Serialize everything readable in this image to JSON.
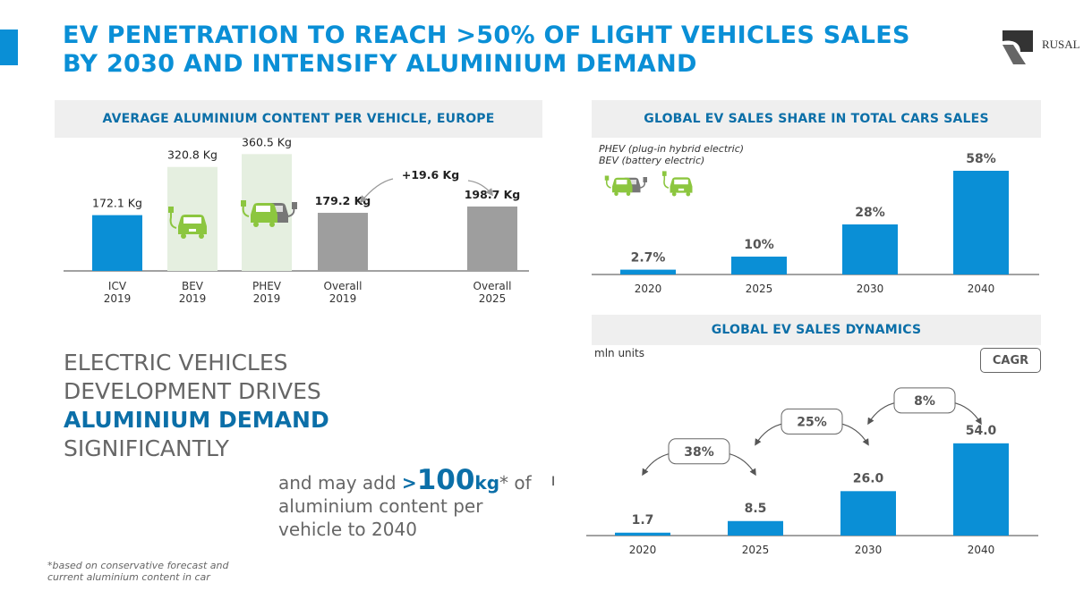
{
  "header": {
    "title_line1": "EV PENETRATION TO REACH >50% OF LIGHT VEHICLES SALES",
    "title_line2": "BY 2030 AND INTENSIFY ALUMINIUM DEMAND",
    "logo_text": "RUSAL"
  },
  "colors": {
    "blue": "#0a8fd6",
    "dark_blue": "#0b6fa8",
    "gray_bar": "#9e9e9e",
    "green_icon": "#8cc63f",
    "highlight_bg": "#e5efe0"
  },
  "statement": {
    "line1": "ELECTRIC VEHICLES",
    "line2": "DEVELOPMENT DRIVES",
    "line3": "ALUMINIUM DEMAND",
    "line4": "SIGNIFICANTLY"
  },
  "may_add": {
    "prefix": "and may add",
    "gt": ">",
    "number": "100",
    "unit": "kg",
    "suffix": "* of",
    "line2": "aluminium content per",
    "line3": "vehicle to 2040"
  },
  "footnote": {
    "line1": "*based on conservative forecast and",
    "line2": "current aluminium content in car"
  },
  "legend_text": {
    "phev": "PHEV (plug-in hybrid electric)",
    "bev": "BEV (battery electric)"
  },
  "units_text": "mln units",
  "cagr_label": "CAGR",
  "chart_data": [
    {
      "type": "bar",
      "title": "AVERAGE ALUMINIUM CONTENT PER VEHICLE, EUROPE",
      "categories": [
        "ICV\n2019",
        "BEV\n2019",
        "PHEV\n2019",
        "Overall\n2019",
        "Overall\n2025"
      ],
      "category_lines": [
        [
          "ICV",
          "2019"
        ],
        [
          "BEV",
          "2019"
        ],
        [
          "PHEV",
          "2019"
        ],
        [
          "Overall",
          "2019"
        ],
        [
          "Overall",
          "2025"
        ]
      ],
      "values": [
        172.1,
        320.8,
        360.5,
        179.2,
        198.7
      ],
      "value_labels": [
        "172.1 Kg",
        "320.8 Kg",
        "360.5 Kg",
        "179.2 Kg",
        "198.7 Kg"
      ],
      "bar_styles": [
        "blue",
        "icon",
        "icon",
        "gray",
        "gray"
      ],
      "bold_labels": [
        false,
        false,
        false,
        true,
        true
      ],
      "annotation": "+19.6 Kg",
      "ylim": [
        0,
        400
      ]
    },
    {
      "type": "bar",
      "title": "GLOBAL EV SALES SHARE IN TOTAL CARS SALES",
      "categories": [
        "2020",
        "2025",
        "2030",
        "2040"
      ],
      "values": [
        2.7,
        10,
        28,
        58
      ],
      "value_labels": [
        "2.7%",
        "10%",
        "28%",
        "58%"
      ],
      "ylim": [
        0,
        60
      ]
    },
    {
      "type": "bar",
      "title": "GLOBAL EV SALES DYNAMICS",
      "categories": [
        "2020",
        "2025",
        "2030",
        "2040"
      ],
      "values": [
        1.7,
        8.5,
        26.0,
        54.0
      ],
      "value_labels": [
        "1.7",
        "8.5",
        "26.0",
        "54.0"
      ],
      "cagr": [
        "38%",
        "25%",
        "8%"
      ],
      "ylim": [
        0,
        56
      ]
    }
  ]
}
